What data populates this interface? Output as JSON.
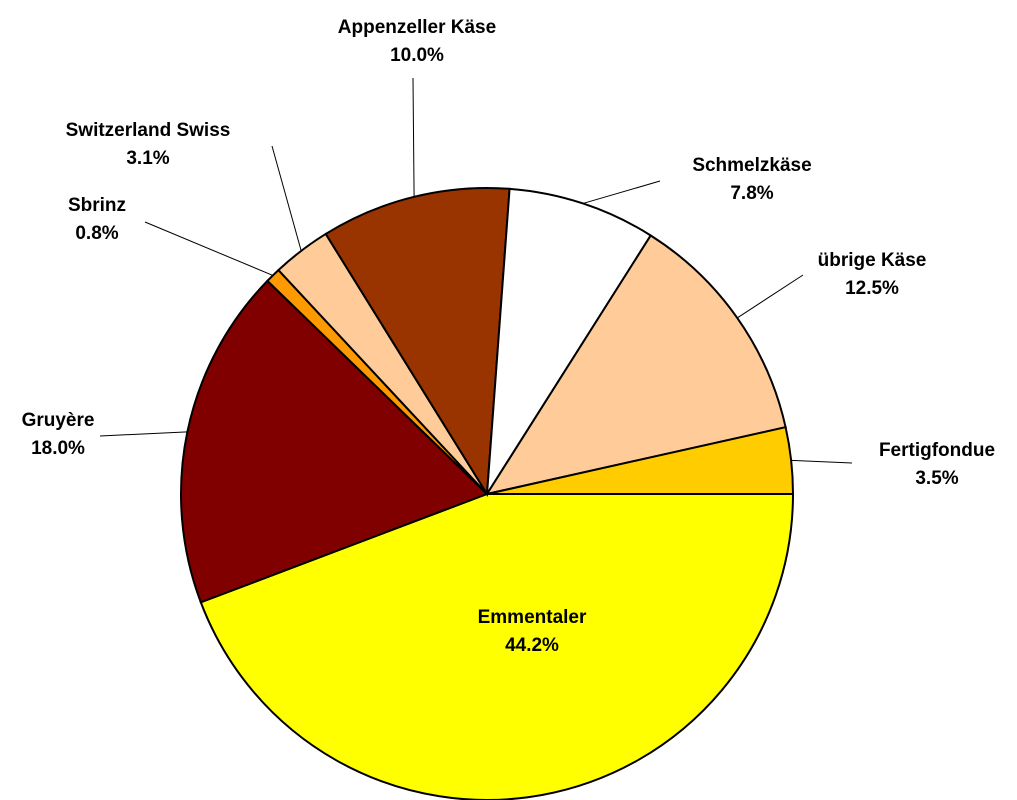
{
  "chart_data": {
    "type": "pie",
    "categories": [
      "Emmentaler",
      "Gruyère",
      "Sbrinz",
      "Switzerland Swiss",
      "Appenzeller Käse",
      "Schmelzkäse",
      "übrige Käse",
      "Fertigfondue"
    ],
    "values": [
      44.2,
      18.0,
      0.8,
      3.1,
      10.0,
      7.8,
      12.5,
      3.5
    ],
    "value_labels": [
      "44.2%",
      "18.0%",
      "0.8%",
      "3.1%",
      "10.0%",
      "7.8%",
      "12.5%",
      "3.5%"
    ],
    "colors": [
      "#FFFF00",
      "#800000",
      "#FF9900",
      "#FFCC99",
      "#993300",
      "#FFFFFF",
      "#FFCC99",
      "#FFCC00"
    ]
  }
}
